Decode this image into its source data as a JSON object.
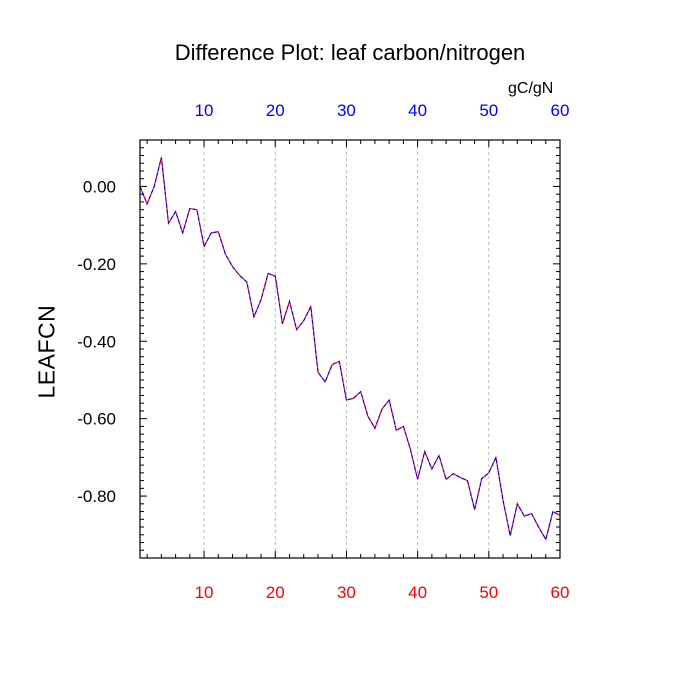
{
  "title": "Difference Plot: leaf carbon/nitrogen",
  "units_label": "gC/gN",
  "ylabel": "LEAFCN",
  "colors": {
    "bottom_axis_labels": "#ff0000",
    "top_axis_labels": "#0000ff",
    "line_primary": "#0000ff",
    "line_secondary": "#ff0000",
    "gridline": "#aaaaaa",
    "frame": "#000000"
  },
  "chart_data": {
    "type": "line",
    "title": "Difference Plot: leaf carbon/nitrogen",
    "xlabel": "",
    "ylabel": "LEAFCN",
    "units": "gC/gN",
    "xlim": [
      1,
      60
    ],
    "ylim": [
      -0.96,
      0.12
    ],
    "x_ticks": [
      10,
      20,
      30,
      40,
      50,
      60
    ],
    "x_tick_labels_bottom": [
      "10",
      "20",
      "30",
      "40",
      "50",
      "60"
    ],
    "x_tick_labels_top": [
      "10",
      "20",
      "30",
      "40",
      "50",
      "60"
    ],
    "y_ticks": [
      0.0,
      -0.2,
      -0.4,
      -0.6,
      -0.8
    ],
    "y_tick_labels": [
      "0.00",
      "-0.20",
      "-0.40",
      "-0.60",
      "-0.80"
    ],
    "grid": "vertical dashed at x ticks",
    "line_style": "dashed",
    "series": [
      {
        "x": [
          1,
          2,
          3,
          4,
          5,
          6,
          7,
          8,
          9,
          10,
          11,
          12,
          13,
          14,
          15,
          16,
          17,
          18,
          19,
          20,
          21,
          22,
          23,
          24,
          25,
          26,
          27,
          28,
          29,
          30,
          31,
          32,
          33,
          34,
          35,
          36,
          37,
          38,
          39,
          40,
          41,
          42,
          43,
          44,
          45,
          46,
          47,
          48,
          49,
          50,
          51,
          52,
          53,
          54,
          55,
          56,
          57,
          58,
          59,
          60
        ],
        "values": [
          0.0,
          -0.045,
          0.0,
          0.075,
          -0.095,
          -0.065,
          -0.12,
          -0.057,
          -0.06,
          -0.155,
          -0.12,
          -0.117,
          -0.175,
          -0.207,
          -0.23,
          -0.247,
          -0.337,
          -0.293,
          -0.225,
          -0.232,
          -0.355,
          -0.297,
          -0.37,
          -0.347,
          -0.31,
          -0.48,
          -0.505,
          -0.46,
          -0.452,
          -0.552,
          -0.547,
          -0.53,
          -0.593,
          -0.625,
          -0.575,
          -0.552,
          -0.63,
          -0.62,
          -0.68,
          -0.757,
          -0.685,
          -0.73,
          -0.695,
          -0.757,
          -0.742,
          -0.752,
          -0.76,
          -0.835,
          -0.755,
          -0.74,
          -0.7,
          -0.812,
          -0.902,
          -0.82,
          -0.852,
          -0.845,
          -0.88,
          -0.912,
          -0.84,
          -0.85
        ]
      }
    ]
  }
}
